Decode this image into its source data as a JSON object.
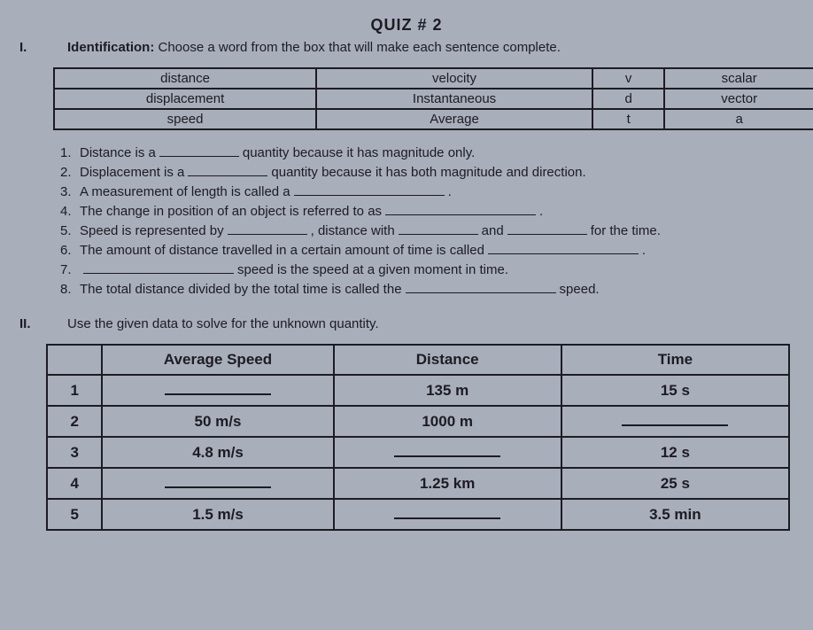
{
  "quiz_title": "QUIZ # 2",
  "section1": {
    "number": "I.",
    "label": "Identification:",
    "instruction": "Choose a word from the box that will make each sentence complete.",
    "wordbox": [
      [
        "distance",
        "velocity",
        "v",
        "scalar"
      ],
      [
        "displacement",
        "Instantaneous",
        "d",
        "vector"
      ],
      [
        "speed",
        "Average",
        "t",
        "a"
      ]
    ],
    "items": [
      {
        "n": "1.",
        "pre": "Distance is a",
        "post": "quantity because it has magnitude only."
      },
      {
        "n": "2.",
        "pre": "Displacement is a",
        "post": "quantity because it has both magnitude and direction."
      },
      {
        "n": "3.",
        "pre": "A measurement of length is called a",
        "post": "."
      },
      {
        "n": "4.",
        "pre": "The change in position of an object is referred to as",
        "post": "."
      },
      {
        "n": "5.",
        "pre": "Speed is represented by",
        "mid1": ", distance with",
        "mid2": "and",
        "post": "for the time."
      },
      {
        "n": "6.",
        "pre": "The amount of distance travelled in a certain amount of time is called",
        "post": "."
      },
      {
        "n": "7.",
        "pre": "",
        "post": "speed is the speed at a given moment in time."
      },
      {
        "n": "8.",
        "pre": "The total distance divided by the total time is called the",
        "post": "speed."
      }
    ]
  },
  "section2": {
    "number": "II.",
    "instruction": "Use the given data to solve for the unknown quantity.",
    "headers": [
      "",
      "Average Speed",
      "Distance",
      "Time"
    ],
    "rows": [
      {
        "n": "1",
        "speed": "",
        "dist": "135 m",
        "time": "15 s"
      },
      {
        "n": "2",
        "speed": "50 m/s",
        "dist": "1000 m",
        "time": ""
      },
      {
        "n": "3",
        "speed": "4.8 m/s",
        "dist": "",
        "time": "12 s"
      },
      {
        "n": "4",
        "speed": "",
        "dist": "1.25 km",
        "time": "25 s"
      },
      {
        "n": "5",
        "speed": "1.5 m/s",
        "dist": "",
        "time": "3.5 min"
      }
    ]
  }
}
